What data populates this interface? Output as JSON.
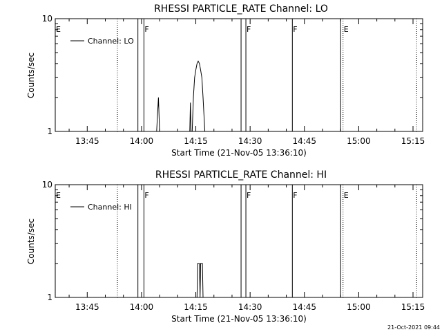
{
  "timestamp": "21-Oct-2021 09:44",
  "chart_data": [
    {
      "type": "line",
      "title": "RHESSI PARTICLE_RATE Channel: LO",
      "xlabel": "Start Time (21-Nov-05 13:36:10)",
      "ylabel": "Counts/sec",
      "yscale": "log",
      "ylim": [
        1,
        10
      ],
      "y_tick_labels": [
        "1",
        "10"
      ],
      "xlim": [
        "13:36:10",
        "15:17:40"
      ],
      "x_tick_labels": [
        "13:45",
        "14:00",
        "14:15",
        "14:30",
        "14:45",
        "15:00",
        "15:15"
      ],
      "legend": {
        "location": "top-left",
        "entries": [
          "Channel: LO"
        ]
      },
      "series": [
        {
          "name": "Channel: LO",
          "points": [
            [
              "14:04:10",
              1
            ],
            [
              "14:04:40",
              2
            ],
            [
              "14:05:00",
              1
            ],
            [
              "14:13:20",
              1
            ],
            [
              "14:13:30",
              1.8
            ],
            [
              "14:13:40",
              1
            ],
            [
              "14:14:00",
              1
            ],
            [
              "14:14:20",
              2
            ],
            [
              "14:14:40",
              3
            ],
            [
              "14:15:00",
              3.5
            ],
            [
              "14:15:20",
              4
            ],
            [
              "14:15:40",
              4.2
            ],
            [
              "14:16:00",
              4
            ],
            [
              "14:16:20",
              3.5
            ],
            [
              "14:16:40",
              3
            ],
            [
              "14:17:00",
              2
            ],
            [
              "14:17:30",
              1
            ]
          ]
        }
      ],
      "flag_lines": [
        {
          "label": "E",
          "times": [
            "13:36:10",
            "13:53:20",
            "14:55:40",
            "15:16:00"
          ],
          "style": "dotted"
        },
        {
          "label": "F",
          "times": [
            "13:59:00",
            "14:00:40",
            "14:27:30",
            "14:28:50",
            "14:41:40",
            "14:55:00"
          ],
          "style": "solid"
        }
      ]
    },
    {
      "type": "line",
      "title": "RHESSI PARTICLE_RATE Channel: HI",
      "xlabel": "Start Time (21-Nov-05 13:36:10)",
      "ylabel": "Counts/sec",
      "yscale": "log",
      "ylim": [
        1,
        10
      ],
      "y_tick_labels": [
        "1",
        "10"
      ],
      "xlim": [
        "13:36:10",
        "15:17:40"
      ],
      "x_tick_labels": [
        "13:45",
        "14:00",
        "14:15",
        "14:30",
        "14:45",
        "15:00",
        "15:15"
      ],
      "legend": {
        "location": "top-left",
        "entries": [
          "Channel: HI"
        ]
      },
      "series": [
        {
          "name": "Channel: HI",
          "points": [
            [
              "14:15:20",
              1
            ],
            [
              "14:15:30",
              2
            ],
            [
              "14:16:00",
              2
            ],
            [
              "14:16:10",
              1
            ],
            [
              "14:16:20",
              2
            ],
            [
              "14:16:50",
              2
            ],
            [
              "14:17:00",
              1
            ]
          ]
        }
      ],
      "flag_lines": [
        {
          "label": "E",
          "times": [
            "13:36:10",
            "13:53:20",
            "14:55:40",
            "15:16:00"
          ],
          "style": "dotted"
        },
        {
          "label": "F",
          "times": [
            "13:59:00",
            "14:00:40",
            "14:27:30",
            "14:28:50",
            "14:41:40",
            "14:55:00"
          ],
          "style": "solid"
        }
      ]
    }
  ]
}
